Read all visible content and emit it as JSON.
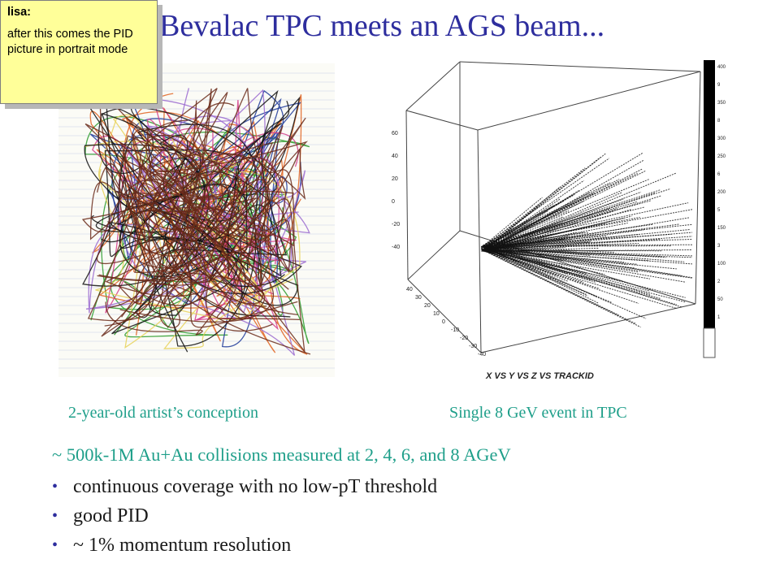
{
  "slide": {
    "title": "Bevalac TPC meets an AGS beam...",
    "note": {
      "author": "lisa:",
      "text": "after this comes the PID picture in portrait mode"
    },
    "caption_left": "2-year-old artist’s conception",
    "caption_right": "Single 8 GeV event in TPC",
    "lead": "~ 500k-1M Au+Au collisions measured at 2, 4, 6, and 8 AGeV",
    "bullets": [
      "continuous coverage with no low-pT threshold",
      "good PID",
      "~ 1% momentum resolution"
    ],
    "tpc_plot": {
      "axis_label": "X VS Y VS Z VS TRACKID",
      "y_ticks": [
        "60",
        "40",
        "20",
        "0",
        "-20",
        "-40"
      ],
      "x_ticks": [
        "40",
        "30",
        "20",
        "10",
        "0",
        "-10",
        "-20",
        "-30",
        "-40"
      ],
      "colorbar_labels": [
        "400",
        "9",
        "350",
        "8",
        "300",
        "250",
        "6",
        "200",
        "5",
        "150",
        "3",
        "100",
        "2",
        "50",
        "1"
      ]
    },
    "colors": {
      "title": "#2e2e9e",
      "caption": "#1f9f8a",
      "note_bg": "#ffff99"
    }
  }
}
